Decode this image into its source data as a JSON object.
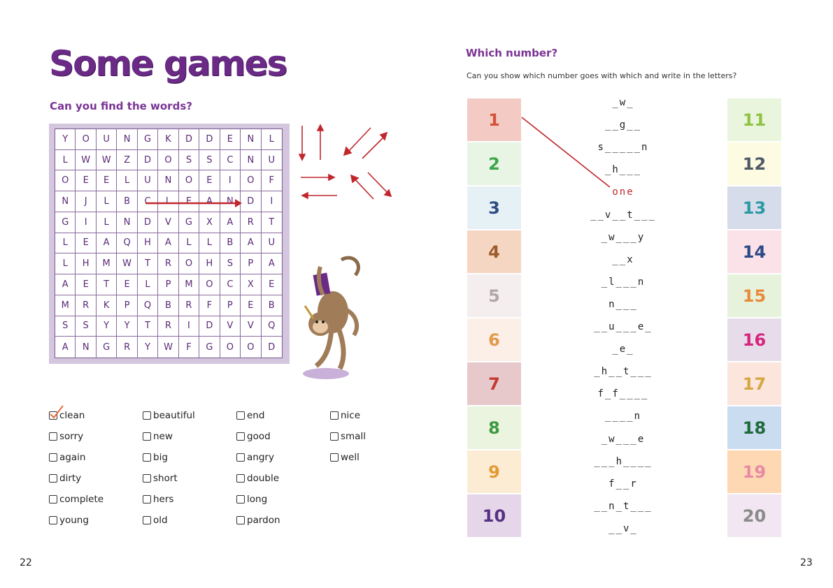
{
  "left_page": {
    "title": "Some games",
    "subtitle": "Can you find the words?",
    "grid": [
      "YOUNGKDDENL",
      "LWWZDOSSCNU",
      "OEELUNOEIOF",
      "NJLBCLEANDI",
      "GILNDVGXART",
      "LEAQHALLBAU",
      "LHMWTROHSPA",
      "AETELPMOCXE",
      "MRKPQBRFPEB",
      "SSYYTRIDVVQ",
      "ANGRYWFGOOD"
    ],
    "words": [
      [
        "clean",
        "sorry",
        "again",
        "dirty",
        "complete",
        "young"
      ],
      [
        "beautiful",
        "new",
        "big",
        "short",
        "hers",
        "old"
      ],
      [
        "end",
        "good",
        "angry",
        "double",
        "long",
        "pardon"
      ],
      [
        "nice",
        "small",
        "well"
      ]
    ],
    "checked_word": "clean",
    "page_number": "22",
    "colors": {
      "title": "#6a2a86",
      "heading": "#7a3494",
      "grid_border": "#d4c6df",
      "arrow": "#c0272d"
    }
  },
  "right_page": {
    "title": "Which number?",
    "instruction": "Can you show which number goes with which and write in the letters?",
    "left_numbers": [
      {
        "n": "1",
        "bg": "#f4cbc4",
        "fg": "#d2533a"
      },
      {
        "n": "2",
        "bg": "#e8f4e4",
        "fg": "#3ca64a"
      },
      {
        "n": "3",
        "bg": "#e6f1f5",
        "fg": "#2d4d84"
      },
      {
        "n": "4",
        "bg": "#f4d6c2",
        "fg": "#9c5b2a"
      },
      {
        "n": "5",
        "bg": "#f4eeee",
        "fg": "#b0a8a8"
      },
      {
        "n": "6",
        "bg": "#fbefe8",
        "fg": "#e09a4a"
      },
      {
        "n": "7",
        "bg": "#e7c9cc",
        "fg": "#c23a32"
      },
      {
        "n": "8",
        "bg": "#eaf4de",
        "fg": "#3d9a45"
      },
      {
        "n": "9",
        "bg": "#fdecd4",
        "fg": "#e39a32"
      },
      {
        "n": "10",
        "bg": "#e5d6ea",
        "fg": "#553182"
      }
    ],
    "right_numbers": [
      {
        "n": "11",
        "bg": "#e9f5dc",
        "fg": "#8ec343"
      },
      {
        "n": "12",
        "bg": "#fdfbe1",
        "fg": "#4e5a66"
      },
      {
        "n": "13",
        "bg": "#d7dceb",
        "fg": "#2a9aa2"
      },
      {
        "n": "14",
        "bg": "#fbe1e8",
        "fg": "#2c4a86"
      },
      {
        "n": "15",
        "bg": "#e7f2dc",
        "fg": "#e88a3a"
      },
      {
        "n": "16",
        "bg": "#e7dcea",
        "fg": "#d6257c"
      },
      {
        "n": "17",
        "bg": "#fbe5dc",
        "fg": "#d6a642"
      },
      {
        "n": "18",
        "bg": "#c9dcf0",
        "fg": "#1f6a3a"
      },
      {
        "n": "19",
        "bg": "#fdd8b2",
        "fg": "#e88aa4"
      },
      {
        "n": "20",
        "bg": "#f1e6f1",
        "fg": "#8a8a8a"
      }
    ],
    "clues": [
      "_w_",
      "__g__",
      "s_____n",
      "_h___",
      "one",
      "__v__t___",
      "_w___y",
      "__x",
      "_l___n",
      "n___",
      "__u___e_",
      "_e_",
      "_h__t___",
      "f_f____",
      "____n",
      "_w___e",
      "___h____",
      "f__r",
      "__n_t___",
      "__v_"
    ],
    "filled_clue": "one",
    "page_number": "23",
    "colors": {
      "line": "#c0272d",
      "filled_text": "#c0272d"
    }
  }
}
